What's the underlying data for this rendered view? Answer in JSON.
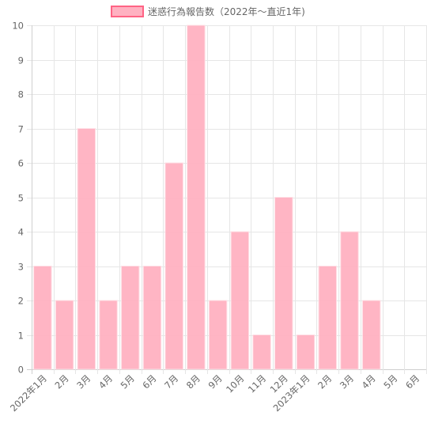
{
  "chart_data": {
    "type": "bar",
    "legend": {
      "label": "迷惑行為報告数（2022年～直近1年)",
      "placement": "top-center"
    },
    "categories": [
      "2022年1月",
      "2月",
      "3月",
      "4月",
      "5月",
      "6月",
      "7月",
      "8月",
      "9月",
      "10月",
      "11月",
      "12月",
      "2023年1月",
      "2月",
      "3月",
      "4月",
      "5月",
      "6月"
    ],
    "series": [
      {
        "name": "迷惑行為報告数（2022年～直近1年)",
        "values": [
          3,
          2,
          7,
          2,
          3,
          3,
          6,
          10,
          2,
          4,
          1,
          5,
          1,
          3,
          4,
          2,
          0,
          0
        ]
      }
    ],
    "ylim": [
      0,
      10
    ],
    "yticks": [
      0,
      1,
      2,
      3,
      4,
      5,
      6,
      7,
      8,
      9,
      10
    ],
    "grid": true,
    "colors": {
      "bar_fill": "#ffb1c1",
      "bar_border": "#ff6384",
      "grid": "#e6e6e6",
      "text": "#666666"
    }
  }
}
